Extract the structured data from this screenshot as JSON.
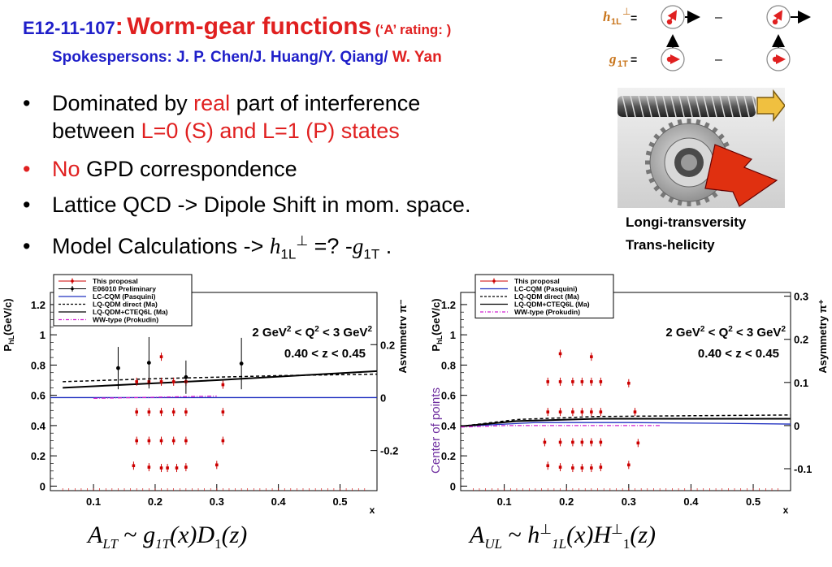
{
  "header": {
    "code": "E12-11-107",
    "colon": ":",
    "title": "Worm-gear functions",
    "rating": "(‘A’  rating: )",
    "spokes_label": "Spokespersons: J. P. Chen/J. Huang/Y. Qiang/",
    "spokes_last": "W. Yan"
  },
  "definitions": {
    "h_symbol": "h",
    "h_sub": "1L",
    "h_sup": "⊥",
    "g_symbol": "g",
    "g_sub": "1T",
    "equals": "=",
    "minus": "–"
  },
  "bullets": [
    {
      "parts": [
        {
          "t": "Dominated by ",
          "c": ""
        },
        {
          "t": "real",
          "c": "red"
        },
        {
          "t": " part of interference",
          "c": ""
        }
      ],
      "cont": [
        {
          "t": "between ",
          "c": ""
        },
        {
          "t": "L=0 (S) and L=1 (P) states",
          "c": "red"
        }
      ],
      "dot_color": "black"
    },
    {
      "parts": [
        {
          "t": "No",
          "c": "red"
        },
        {
          "t": " GPD correspondence",
          "c": ""
        }
      ],
      "dot_color": "red"
    },
    {
      "parts": [
        {
          "t": "Lattice  QCD -> Dipole Shift in mom. space.",
          "c": ""
        }
      ],
      "dot_color": "black"
    }
  ],
  "bullet4": {
    "lead": "Model Calculations -> ",
    "h": "h",
    "h_sub": "1L",
    "h_sup": "⊥",
    "mid": " =? -",
    "g": "g",
    "g_sub": "1T",
    "end": " ."
  },
  "gear_caption": [
    "Longi-transversity",
    "Trans-helicity"
  ],
  "colors": {
    "blue": "#1f1fc9",
    "red": "#e02020",
    "orange": "#c8741a",
    "purple": "#8a2be2"
  },
  "chart_data": [
    {
      "type": "scatter",
      "ylabel": "P_hL(GeV/c)",
      "ylabel_main": "P",
      "ylabel_sub": "hL",
      "ylabel_unit": "(GeV/c)",
      "y2label": "Asymmetry π⁻",
      "xlabel": "x",
      "xlim": [
        0.03,
        0.56
      ],
      "ylim": [
        -0.03,
        1.28
      ],
      "x_ticks": [
        "0.1",
        "0.2",
        "0.3",
        "0.4",
        "0.5"
      ],
      "y_ticks": [
        "0",
        "0.2",
        "0.4",
        "0.6",
        "0.8",
        "1",
        "1.2"
      ],
      "y2_ticks": [
        "-0.2",
        "0",
        "0.2"
      ],
      "annotations": [
        "2 GeV² < Q² < 3 GeV²",
        "0.40 < z < 0.45"
      ],
      "q2_text": "2 GeV",
      "q2_mid": " < Q",
      "q2_end": " < 3 GeV",
      "sup2": "2",
      "z_text": "0.40 < z < 0.45",
      "legend": [
        "This proposal",
        "E06010 Preliminary",
        "LC-CQM (Pasquini)",
        "LQ-QDM direct (Ma)",
        "LQ-QDM+CTEQ6L (Ma)",
        "WW-type (Prokudin)"
      ],
      "legend_styles": [
        "red-errbar",
        "black-errbar",
        "blue-solid",
        "black-dashed",
        "black-solid",
        "magenta-dashdot"
      ],
      "proposal_points": [
        [
          0.21,
          0.855
        ],
        [
          0.17,
          0.69
        ],
        [
          0.19,
          0.69
        ],
        [
          0.21,
          0.69
        ],
        [
          0.23,
          0.69
        ],
        [
          0.25,
          0.69
        ],
        [
          0.31,
          0.67
        ],
        [
          0.17,
          0.49
        ],
        [
          0.19,
          0.49
        ],
        [
          0.21,
          0.49
        ],
        [
          0.23,
          0.49
        ],
        [
          0.25,
          0.49
        ],
        [
          0.31,
          0.49
        ],
        [
          0.17,
          0.3
        ],
        [
          0.19,
          0.3
        ],
        [
          0.21,
          0.3
        ],
        [
          0.23,
          0.3
        ],
        [
          0.25,
          0.3
        ],
        [
          0.31,
          0.3
        ],
        [
          0.165,
          0.135
        ],
        [
          0.19,
          0.125
        ],
        [
          0.21,
          0.12
        ],
        [
          0.22,
          0.12
        ],
        [
          0.235,
          0.12
        ],
        [
          0.25,
          0.125
        ],
        [
          0.3,
          0.14
        ]
      ],
      "e06010_points": [
        [
          0.14,
          0.78,
          0.14
        ],
        [
          0.19,
          0.815,
          0.17
        ],
        [
          0.25,
          0.72,
          0.11
        ],
        [
          0.34,
          0.81,
          0.17
        ]
      ],
      "lc_cqm": [
        [
          0.03,
          0.585
        ],
        [
          0.56,
          0.585
        ]
      ],
      "lq_direct": [
        [
          0.05,
          0.69
        ],
        [
          0.2,
          0.71
        ],
        [
          0.4,
          0.73
        ],
        [
          0.56,
          0.74
        ]
      ],
      "lq_cteq": [
        [
          0.05,
          0.65
        ],
        [
          0.15,
          0.67
        ],
        [
          0.3,
          0.7
        ],
        [
          0.45,
          0.735
        ],
        [
          0.56,
          0.76
        ]
      ],
      "ww": [
        [
          0.1,
          0.58
        ],
        [
          0.3,
          0.595
        ]
      ],
      "line_y_zero": 0.585
    },
    {
      "type": "scatter",
      "ylabel": "P_hL(GeV/c)",
      "ylabel_main": "P",
      "ylabel_sub": "hL",
      "ylabel_unit": "(GeV/c)",
      "y_side_label": "Center of points",
      "y2label": "Asymmetry π⁺",
      "xlabel": "x",
      "xlim": [
        0.03,
        0.56
      ],
      "ylim": [
        -0.03,
        1.28
      ],
      "x_ticks": [
        "0.1",
        "0.2",
        "0.3",
        "0.4",
        "0.5"
      ],
      "y_ticks": [
        "0",
        "0.2",
        "0.4",
        "0.6",
        "0.8",
        "1",
        "1.2"
      ],
      "y2_ticks": [
        "-0.1",
        "0",
        "0.1",
        "0.2",
        "0.3"
      ],
      "annotations": [
        "2 GeV² < Q² < 3 GeV²",
        "0.40 < z < 0.45"
      ],
      "q2_text": "2 GeV",
      "q2_mid": " < Q",
      "q2_end": " < 3 GeV",
      "sup2": "2",
      "z_text": "0.40 < z < 0.45",
      "legend": [
        "This proposal",
        "LC-CQM (Pasquini)",
        "LQ-QDM direct (Ma)",
        "LQ-QDM+CTEQ6L (Ma)",
        "WW-type (Prokudin)"
      ],
      "legend_styles": [
        "red-errbar",
        "blue-solid",
        "black-dashed",
        "black-solid",
        "magenta-dashdot"
      ],
      "proposal_points": [
        [
          0.19,
          0.875
        ],
        [
          0.24,
          0.855
        ],
        [
          0.17,
          0.69
        ],
        [
          0.19,
          0.69
        ],
        [
          0.21,
          0.69
        ],
        [
          0.225,
          0.69
        ],
        [
          0.24,
          0.69
        ],
        [
          0.255,
          0.69
        ],
        [
          0.3,
          0.68
        ],
        [
          0.17,
          0.49
        ],
        [
          0.19,
          0.49
        ],
        [
          0.21,
          0.49
        ],
        [
          0.225,
          0.49
        ],
        [
          0.24,
          0.49
        ],
        [
          0.255,
          0.49
        ],
        [
          0.31,
          0.49
        ],
        [
          0.165,
          0.29
        ],
        [
          0.19,
          0.29
        ],
        [
          0.21,
          0.29
        ],
        [
          0.225,
          0.29
        ],
        [
          0.24,
          0.29
        ],
        [
          0.255,
          0.29
        ],
        [
          0.315,
          0.285
        ],
        [
          0.17,
          0.135
        ],
        [
          0.19,
          0.125
        ],
        [
          0.21,
          0.12
        ],
        [
          0.225,
          0.12
        ],
        [
          0.24,
          0.12
        ],
        [
          0.255,
          0.125
        ],
        [
          0.3,
          0.14
        ]
      ],
      "lc_cqm": [
        [
          0.03,
          0.395
        ],
        [
          0.15,
          0.42
        ],
        [
          0.3,
          0.42
        ],
        [
          0.45,
          0.415
        ],
        [
          0.56,
          0.41
        ]
      ],
      "lq_direct": [
        [
          0.03,
          0.395
        ],
        [
          0.12,
          0.44
        ],
        [
          0.25,
          0.46
        ],
        [
          0.4,
          0.465
        ],
        [
          0.56,
          0.47
        ]
      ],
      "lq_cteq": [
        [
          0.03,
          0.395
        ],
        [
          0.12,
          0.43
        ],
        [
          0.25,
          0.445
        ],
        [
          0.4,
          0.445
        ],
        [
          0.56,
          0.445
        ]
      ],
      "ww": [
        [
          0.03,
          0.39
        ],
        [
          0.1,
          0.4
        ],
        [
          0.35,
          0.4
        ]
      ]
    }
  ],
  "formulas": {
    "left": {
      "A": "A",
      "A_sub": "LT",
      "tilde": " ~ ",
      "g": "g",
      "g_sub": "1T",
      "rest": "(x)D",
      "d_sub": "1",
      "end": "(z)"
    },
    "right": {
      "A": "A",
      "A_sub": "UL",
      "tilde": " ~ ",
      "h": "h",
      "h_sup": "⊥",
      "h_sub": "1L",
      "mid": "(x)H",
      "H_sup": "⊥",
      "H_sub": "1",
      "end": "(z)"
    }
  }
}
